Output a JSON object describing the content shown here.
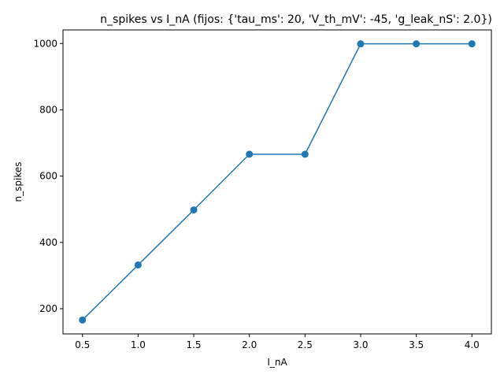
{
  "chart_data": {
    "type": "line",
    "title": "n_spikes vs I_nA (fijos: {'tau_ms': 20, 'V_th_mV': -45, 'g_leak_nS': 2.0})",
    "xlabel": "I_nA",
    "ylabel": "n_spikes",
    "x": [
      0.5,
      1.0,
      1.5,
      2.0,
      2.5,
      3.0,
      3.5,
      4.0
    ],
    "series": [
      {
        "values": [
          166,
          332,
          498,
          666,
          666,
          999,
          999,
          999
        ]
      }
    ],
    "xlim": [
      0.325,
      4.175
    ],
    "ylim": [
      124,
      1041
    ],
    "xticks": [
      "0.5",
      "1.0",
      "1.5",
      "2.0",
      "2.5",
      "3.0",
      "3.5",
      "4.0"
    ],
    "xtick_values": [
      0.5,
      1.0,
      1.5,
      2.0,
      2.5,
      3.0,
      3.5,
      4.0
    ],
    "yticks": [
      "200",
      "400",
      "600",
      "800",
      "1000"
    ],
    "ytick_values": [
      200,
      400,
      600,
      800,
      1000
    ],
    "grid": false,
    "marker": "circle",
    "colors": {
      "line": "#1f77b4",
      "axes": "#000000",
      "background": "#ffffff"
    }
  }
}
